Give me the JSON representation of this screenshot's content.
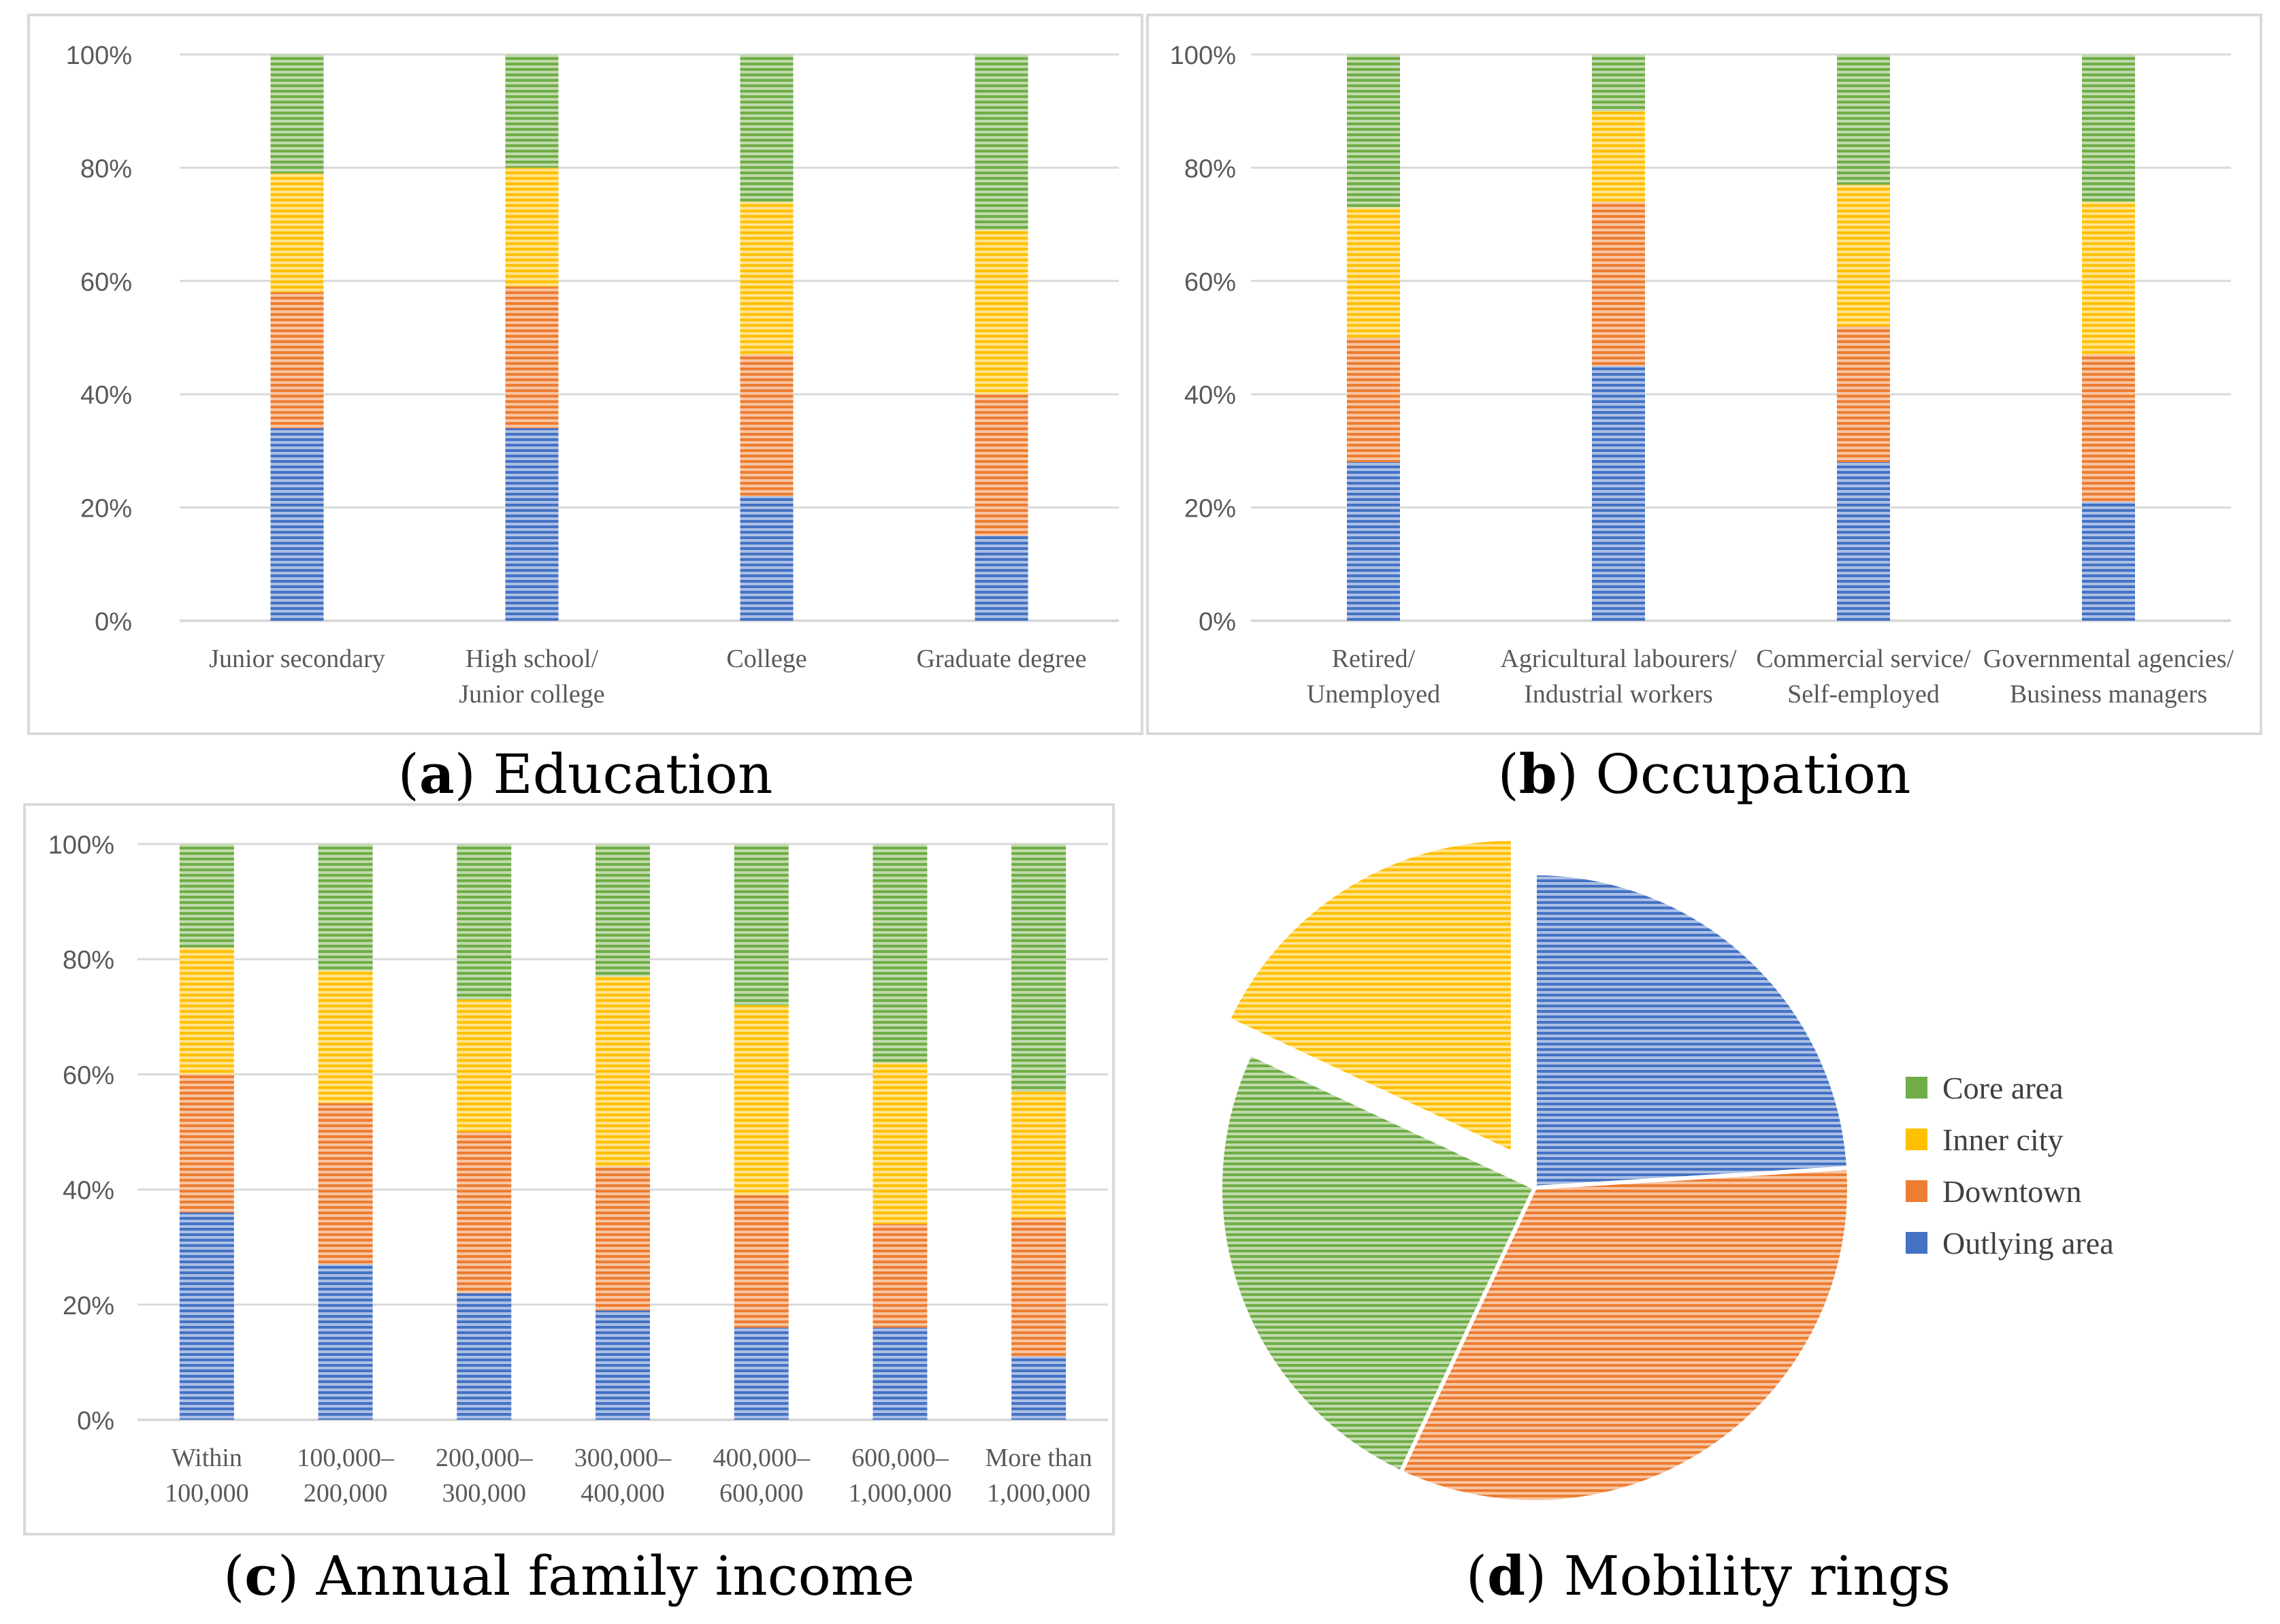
{
  "colors": {
    "core_area": "#70ad47",
    "inner_city": "#ffc000",
    "downtown": "#ed7d31",
    "outlying_area": "#4472c4",
    "grid": "#d9d9d9",
    "axis_text": "#595959"
  },
  "captions": {
    "a": {
      "letter": "a",
      "text": "Education"
    },
    "b": {
      "letter": "b",
      "text": "Occupation"
    },
    "c": {
      "letter": "c",
      "text": "Annual family income"
    },
    "d": {
      "letter": "d",
      "text": "Mobility rings"
    }
  },
  "legend": {
    "items": [
      {
        "label": "Core area",
        "key": "core_area"
      },
      {
        "label": "Inner city",
        "key": "inner_city"
      },
      {
        "label": "Downtown",
        "key": "downtown"
      },
      {
        "label": "Outlying area",
        "key": "outlying_area"
      }
    ]
  },
  "chart_data": [
    {
      "id": "a",
      "type": "bar",
      "stacked": true,
      "percent": true,
      "yticks": [
        "0%",
        "20%",
        "40%",
        "60%",
        "80%",
        "100%"
      ],
      "ylim": [
        0,
        100
      ],
      "categories": [
        [
          "Junior secondary"
        ],
        [
          "High school/",
          "Junior college"
        ],
        [
          "College"
        ],
        [
          "Graduate degree"
        ]
      ],
      "series": [
        {
          "key": "outlying_area",
          "values": [
            34,
            34,
            22,
            15
          ]
        },
        {
          "key": "downtown",
          "values": [
            24,
            25,
            25,
            25
          ]
        },
        {
          "key": "inner_city",
          "values": [
            21,
            21,
            27,
            29
          ]
        },
        {
          "key": "core_area",
          "values": [
            21,
            20,
            26,
            31
          ]
        }
      ]
    },
    {
      "id": "b",
      "type": "bar",
      "stacked": true,
      "percent": true,
      "yticks": [
        "0%",
        "20%",
        "40%",
        "60%",
        "80%",
        "100%"
      ],
      "ylim": [
        0,
        100
      ],
      "categories": [
        [
          "Retired/",
          "Unemployed"
        ],
        [
          "Agricultural labourers/",
          "Industrial workers"
        ],
        [
          "Commercial service/",
          "Self-employed"
        ],
        [
          "Governmental agencies/",
          "Business managers"
        ]
      ],
      "series": [
        {
          "key": "outlying_area",
          "values": [
            28,
            45,
            28,
            21
          ]
        },
        {
          "key": "downtown",
          "values": [
            22,
            29,
            24,
            26
          ]
        },
        {
          "key": "inner_city",
          "values": [
            23,
            16,
            25,
            27
          ]
        },
        {
          "key": "core_area",
          "values": [
            27,
            10,
            23,
            26
          ]
        }
      ]
    },
    {
      "id": "c",
      "type": "bar",
      "stacked": true,
      "percent": true,
      "yticks": [
        "0%",
        "20%",
        "40%",
        "60%",
        "80%",
        "100%"
      ],
      "ylim": [
        0,
        100
      ],
      "categories": [
        [
          "Within",
          "100,000"
        ],
        [
          "100,000–",
          "200,000"
        ],
        [
          "200,000–",
          "300,000"
        ],
        [
          "300,000–",
          "400,000"
        ],
        [
          "400,000–",
          "600,000"
        ],
        [
          "600,000–",
          "1,000,000"
        ],
        [
          "More than",
          "1,000,000"
        ]
      ],
      "series": [
        {
          "key": "outlying_area",
          "values": [
            36,
            27,
            22,
            19,
            16,
            16,
            11
          ]
        },
        {
          "key": "downtown",
          "values": [
            24,
            28,
            28,
            25,
            23,
            18,
            24
          ]
        },
        {
          "key": "inner_city",
          "values": [
            22,
            23,
            23,
            33,
            33,
            28,
            22
          ]
        },
        {
          "key": "core_area",
          "values": [
            18,
            22,
            27,
            23,
            28,
            38,
            43
          ]
        }
      ]
    },
    {
      "id": "d",
      "type": "pie",
      "slices": [
        {
          "key": "outlying_area",
          "label": "Outlying area",
          "value": 24
        },
        {
          "key": "downtown",
          "label": "Downtown",
          "value": 33
        },
        {
          "key": "core_area",
          "label": "Core area",
          "value": 25
        },
        {
          "key": "inner_city",
          "label": "Inner city",
          "value": 18
        }
      ],
      "exploded": "inner_city"
    }
  ]
}
